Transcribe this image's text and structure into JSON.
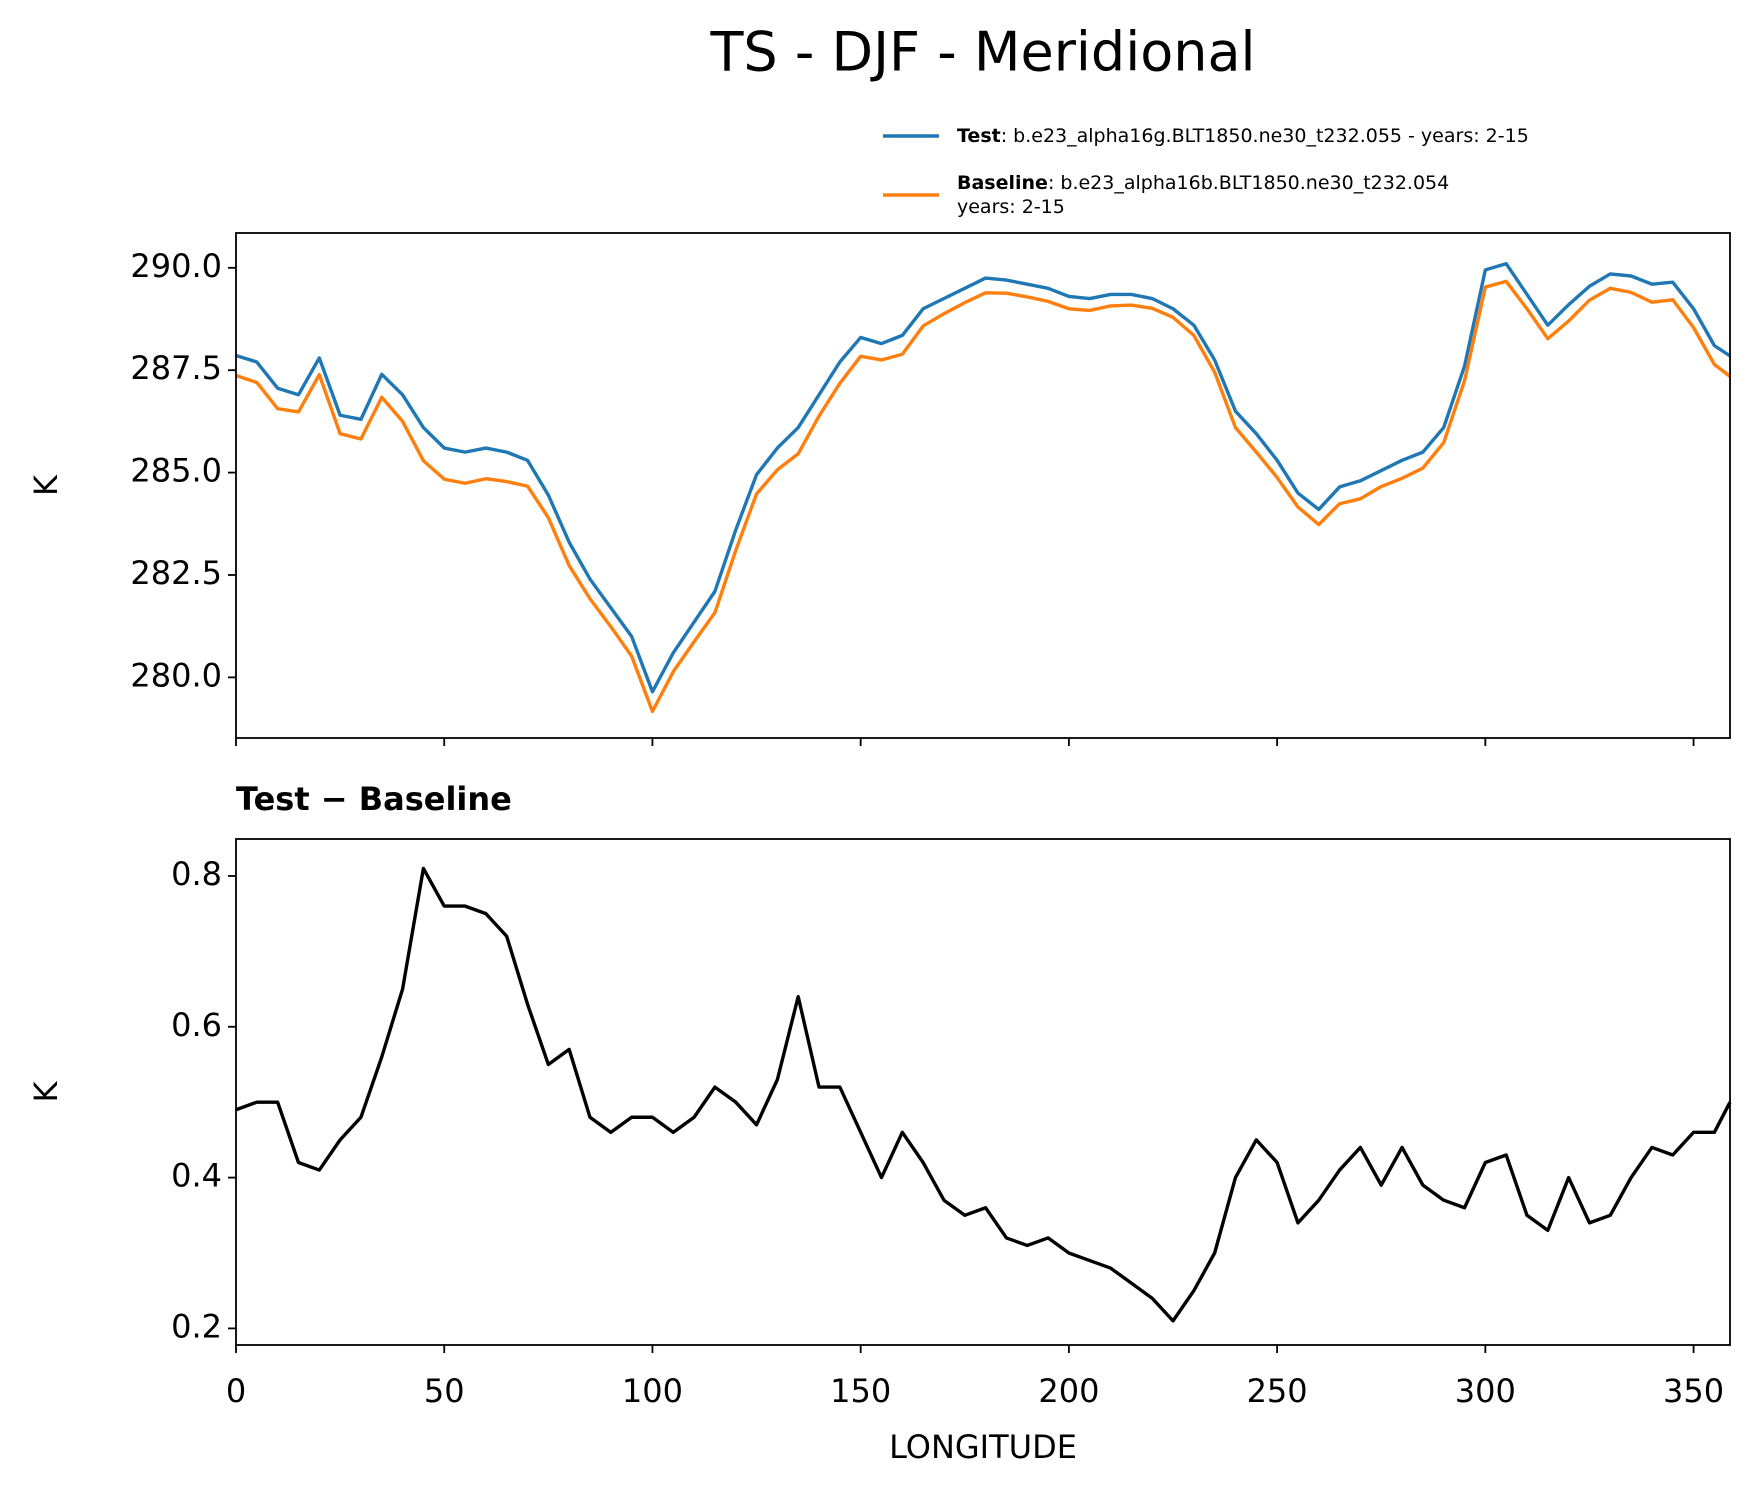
{
  "title": "TS - DJF - Meridional",
  "chart_data": [
    {
      "type": "line",
      "ylabel": "K",
      "x": [
        0,
        5,
        10,
        15,
        20,
        25,
        30,
        35,
        40,
        45,
        50,
        55,
        60,
        65,
        70,
        75,
        80,
        85,
        90,
        95,
        100,
        105,
        110,
        115,
        120,
        125,
        130,
        135,
        140,
        145,
        150,
        155,
        160,
        165,
        170,
        175,
        180,
        185,
        190,
        195,
        200,
        205,
        210,
        215,
        220,
        225,
        230,
        235,
        240,
        245,
        250,
        255,
        260,
        265,
        270,
        275,
        280,
        285,
        290,
        295,
        300,
        305,
        310,
        315,
        320,
        325,
        330,
        335,
        340,
        345,
        350,
        355,
        358.75
      ],
      "series": [
        {
          "name": "Test",
          "label": ": b.e23_alpha16g.BLT1850.ne30_t232.055 - years: 2-15",
          "color": "#1f77b4",
          "values": [
            287.86,
            287.7,
            287.06,
            286.9,
            287.8,
            286.4,
            286.3,
            287.4,
            286.9,
            286.1,
            285.6,
            285.5,
            285.6,
            285.5,
            285.3,
            284.45,
            283.3,
            282.4,
            281.7,
            281.0,
            279.65,
            280.6,
            281.35,
            282.1,
            283.6,
            284.95,
            285.6,
            286.1,
            286.9,
            287.7,
            288.3,
            288.15,
            288.35,
            289.0,
            289.25,
            289.5,
            289.75,
            289.7,
            289.6,
            289.5,
            289.3,
            289.25,
            289.35,
            289.35,
            289.25,
            289.0,
            288.6,
            287.75,
            286.5,
            285.95,
            285.3,
            284.5,
            284.1,
            284.65,
            284.8,
            285.05,
            285.3,
            285.5,
            286.1,
            287.6,
            289.95,
            290.1,
            289.35,
            288.6,
            289.1,
            289.55,
            289.85,
            289.8,
            289.6,
            289.65,
            289.0,
            288.1,
            287.85
          ]
        },
        {
          "name": "Baseline",
          "label_lines": [
            ": b.e23_alpha16b.BLT1850.ne30_t232.054",
            "years: 2-15"
          ],
          "color": "#ff7f0e",
          "values": [
            287.37,
            287.2,
            286.56,
            286.48,
            287.39,
            285.95,
            285.82,
            286.84,
            286.25,
            285.29,
            284.84,
            284.74,
            284.85,
            284.78,
            284.67,
            283.9,
            282.73,
            281.92,
            281.24,
            280.52,
            279.17,
            280.14,
            280.87,
            281.58,
            283.1,
            284.48,
            285.07,
            285.46,
            286.38,
            287.18,
            287.84,
            287.75,
            287.89,
            288.58,
            288.88,
            289.15,
            289.39,
            289.38,
            289.29,
            289.18,
            289.0,
            288.96,
            289.07,
            289.09,
            289.01,
            288.79,
            288.35,
            287.45,
            286.1,
            285.5,
            284.88,
            284.16,
            283.73,
            284.24,
            284.36,
            284.66,
            284.86,
            285.11,
            285.73,
            287.24,
            289.53,
            289.67,
            289.0,
            288.27,
            288.7,
            289.21,
            289.5,
            289.4,
            289.16,
            289.22,
            288.54,
            287.64,
            287.35
          ]
        }
      ],
      "xlim": [
        0,
        358.75
      ],
      "xticks": [
        0,
        50,
        100,
        150,
        200,
        250,
        300,
        350
      ],
      "xtick_labels": false,
      "ylim": [
        278.52,
        290.85
      ],
      "yticks": [
        {
          "value": 280,
          "label": "280.0"
        },
        {
          "value": 282.5,
          "label": "282.5"
        },
        {
          "value": 285,
          "label": "285.0"
        },
        {
          "value": 287.5,
          "label": "287.5"
        },
        {
          "value": 290,
          "label": "290.0"
        }
      ],
      "legend": "upper right"
    },
    {
      "type": "line",
      "title": "Test − Baseline",
      "ylabel": "K",
      "xlabel": "LONGITUDE",
      "x": [
        0,
        5,
        10,
        15,
        20,
        25,
        30,
        35,
        40,
        45,
        50,
        55,
        60,
        65,
        70,
        75,
        80,
        85,
        90,
        95,
        100,
        105,
        110,
        115,
        120,
        125,
        130,
        135,
        140,
        145,
        150,
        155,
        160,
        165,
        170,
        175,
        180,
        185,
        190,
        195,
        200,
        205,
        210,
        215,
        220,
        225,
        230,
        235,
        240,
        245,
        250,
        255,
        260,
        265,
        270,
        275,
        280,
        285,
        290,
        295,
        300,
        305,
        310,
        315,
        320,
        325,
        330,
        335,
        340,
        345,
        350,
        355,
        358.75
      ],
      "series": [
        {
          "color": "#000000",
          "values": [
            0.49,
            0.5,
            0.5,
            0.42,
            0.41,
            0.45,
            0.48,
            0.56,
            0.65,
            0.81,
            0.76,
            0.76,
            0.75,
            0.72,
            0.63,
            0.55,
            0.57,
            0.48,
            0.46,
            0.48,
            0.48,
            0.46,
            0.48,
            0.52,
            0.5,
            0.47,
            0.53,
            0.64,
            0.52,
            0.52,
            0.46,
            0.4,
            0.46,
            0.42,
            0.37,
            0.35,
            0.36,
            0.32,
            0.31,
            0.32,
            0.3,
            0.29,
            0.28,
            0.26,
            0.24,
            0.21,
            0.25,
            0.3,
            0.4,
            0.45,
            0.42,
            0.34,
            0.37,
            0.41,
            0.44,
            0.39,
            0.44,
            0.39,
            0.37,
            0.36,
            0.42,
            0.43,
            0.35,
            0.33,
            0.4,
            0.34,
            0.35,
            0.4,
            0.44,
            0.43,
            0.46,
            0.46,
            0.5
          ]
        }
      ],
      "xlim": [
        0,
        358.75
      ],
      "xticks": [
        0,
        50,
        100,
        150,
        200,
        250,
        300,
        350
      ],
      "xtick_labels": true,
      "ylim": [
        0.178,
        0.849
      ],
      "yticks": [
        0.2,
        0.4,
        0.6,
        0.8
      ]
    }
  ]
}
